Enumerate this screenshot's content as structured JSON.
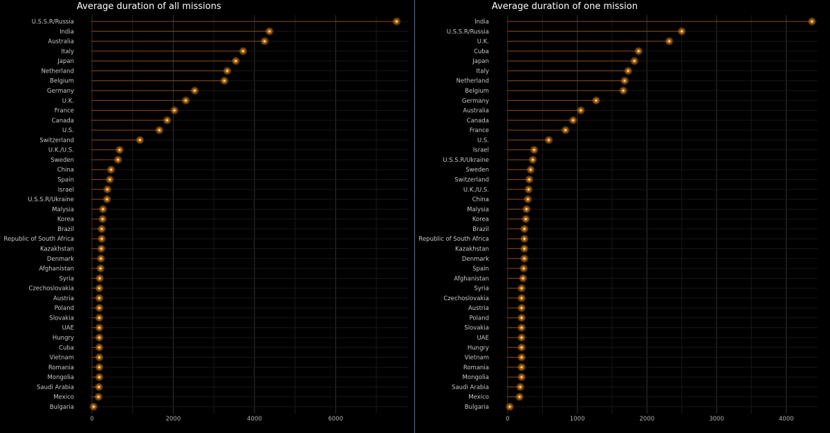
{
  "colors": {
    "background": "#000000",
    "grid": "#333333",
    "stem": "#8b4a1a",
    "glow": "#b86a10",
    "point": "#f0a030",
    "core": "#ffe6b0",
    "divider": "#5a6e96"
  },
  "chart_data": [
    {
      "type": "lollipop",
      "orientation": "horizontal",
      "title": "Average duration of all missions",
      "xlabel": "",
      "ylabel": "",
      "xlim": [
        0,
        7800
      ],
      "xticks": [
        0,
        2000,
        4000,
        6000
      ],
      "grid": true,
      "legend": "none",
      "categories": [
        "U.S.S.R/Russia",
        "India",
        "Australia",
        "Italy",
        "Japan",
        "Netherland",
        "Belgium",
        "Germany",
        "U.K.",
        "France",
        "Canada",
        "U.S.",
        "Switzerland",
        "U.K./U.S.",
        "Sweden",
        "China",
        "Spain",
        "Israel",
        "U.S.S.R/Ukraine",
        "Malysia",
        "Korea",
        "Brazil",
        "Republic of South Africa",
        "Kazakhstan",
        "Denmark",
        "Afghanistan",
        "Syria",
        "Czechoslovakia",
        "Austria",
        "Poland",
        "Slovakia",
        "UAE",
        "Hungry",
        "Cuba",
        "Vietnam",
        "Romania",
        "Mongolia",
        "Saudi Arabia",
        "Mexico",
        "Bulgaria"
      ],
      "values": [
        7500,
        4370,
        4250,
        3720,
        3540,
        3330,
        3260,
        2530,
        2310,
        2030,
        1850,
        1660,
        1180,
        680,
        640,
        470,
        440,
        380,
        370,
        270,
        260,
        240,
        240,
        230,
        220,
        210,
        190,
        180,
        180,
        180,
        180,
        180,
        180,
        180,
        180,
        180,
        180,
        170,
        160,
        40
      ]
    },
    {
      "type": "lollipop",
      "orientation": "horizontal",
      "title": "Average duration of one mission",
      "xlabel": "",
      "ylabel": "",
      "xlim": [
        0,
        4450
      ],
      "xticks": [
        0,
        1000,
        2000,
        3000,
        4000
      ],
      "grid": true,
      "legend": "none",
      "categories": [
        "India",
        "U.S.S.R/Russia",
        "U.K.",
        "Cuba",
        "Japan",
        "Italy",
        "Netherland",
        "Belgium",
        "Germany",
        "Australia",
        "Canada",
        "France",
        "U.S.",
        "Israel",
        "U.S.S.R/Ukraine",
        "Sweden",
        "Switzerland",
        "U.K./U.S.",
        "China",
        "Malysia",
        "Korea",
        "Brazil",
        "Republic of South Africa",
        "Kazakhstan",
        "Denmark",
        "Spain",
        "Afghanistan",
        "Syria",
        "Czechoslovakia",
        "Austria",
        "Poland",
        "Slovakia",
        "UAE",
        "Hungry",
        "Vietnam",
        "Romania",
        "Mongolia",
        "Saudi Arabia",
        "Mexico",
        "Bulgaria"
      ],
      "values": [
        4370,
        2500,
        2320,
        1880,
        1820,
        1730,
        1680,
        1660,
        1270,
        1050,
        940,
        830,
        590,
        380,
        360,
        330,
        310,
        300,
        290,
        270,
        260,
        240,
        240,
        240,
        240,
        230,
        220,
        200,
        200,
        200,
        200,
        200,
        200,
        200,
        200,
        200,
        200,
        180,
        170,
        30
      ]
    }
  ]
}
